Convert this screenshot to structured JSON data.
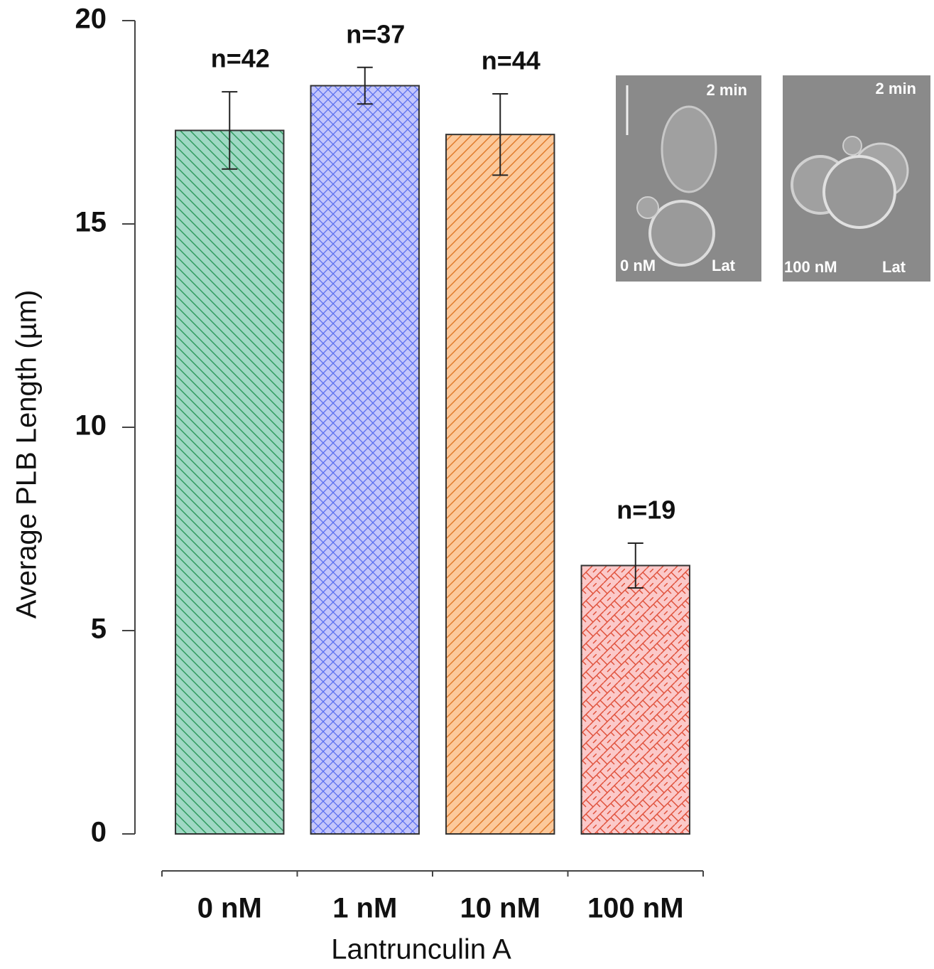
{
  "chart_data": {
    "type": "bar",
    "categories": [
      "0 nM",
      "1 nM",
      "10 nM",
      "100 nM"
    ],
    "values": [
      17.3,
      18.4,
      17.2,
      6.6
    ],
    "errors": [
      0.95,
      0.45,
      1.0,
      0.55
    ],
    "sample_sizes": [
      "n=42",
      "n=37",
      "n=44",
      "n=19"
    ],
    "colors": [
      "#9fd8c4",
      "#c4c6fb",
      "#fcc99b",
      "#fbc9c9"
    ],
    "hatch_colors": [
      "#2e9a5e",
      "#5a6ff0",
      "#e07a2a",
      "#e0503a"
    ],
    "x_label": "Lantrunculin A",
    "y_label": "Average PLB Length (µm)",
    "ylim": [
      0,
      20
    ],
    "yticks": [
      0,
      5,
      10,
      15,
      20
    ],
    "grid": false
  },
  "insets": [
    {
      "time": "2 min",
      "dose": "0 nM",
      "drug": "Lat"
    },
    {
      "time": "2 min",
      "dose": "100 nM",
      "drug": "Lat"
    }
  ]
}
